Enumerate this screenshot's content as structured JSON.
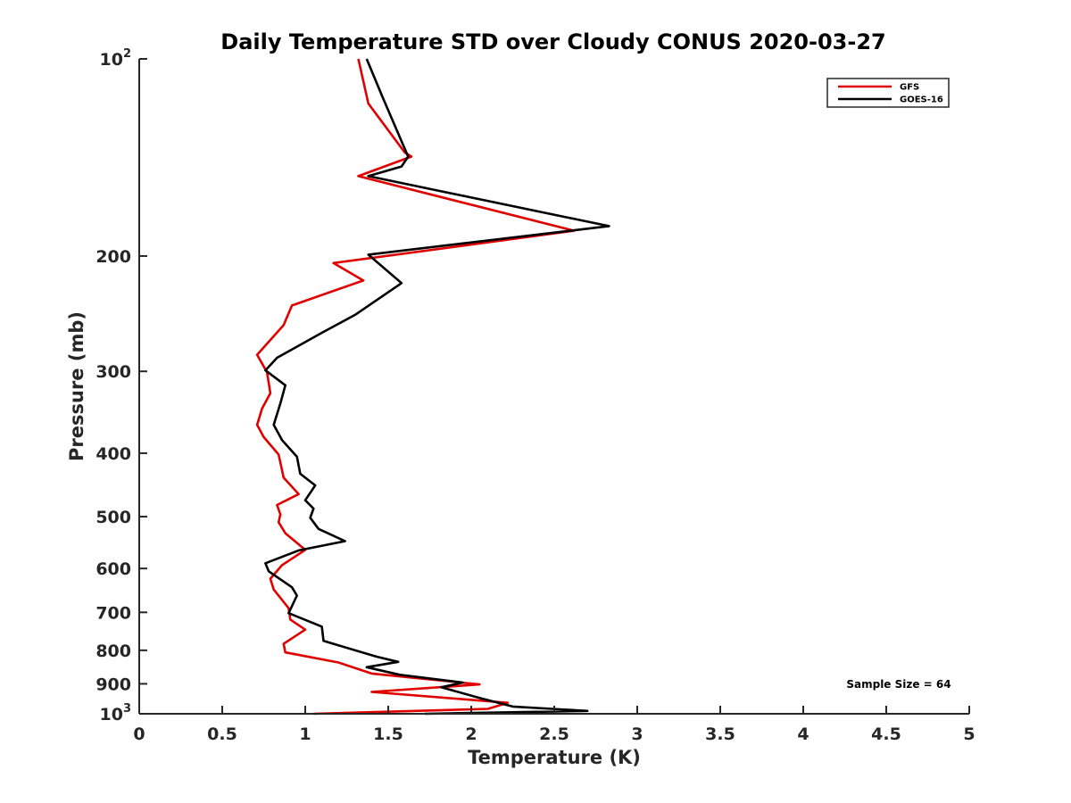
{
  "chart_data": {
    "type": "line",
    "title": "Daily Temperature STD over Cloudy CONUS 2020-03-27",
    "xlabel": "Temperature (K)",
    "ylabel": "Pressure (mb)",
    "xlim": [
      0,
      5
    ],
    "ylim": [
      100,
      1000
    ],
    "y_scale": "log",
    "y_reversed": true,
    "x_ticks": [
      {
        "value": 0,
        "label": "0"
      },
      {
        "value": 0.5,
        "label": "0.5"
      },
      {
        "value": 1,
        "label": "1"
      },
      {
        "value": 1.5,
        "label": "1.5"
      },
      {
        "value": 2,
        "label": "2"
      },
      {
        "value": 2.5,
        "label": "2.5"
      },
      {
        "value": 3,
        "label": "3"
      },
      {
        "value": 3.5,
        "label": "3.5"
      },
      {
        "value": 4,
        "label": "4"
      },
      {
        "value": 4.5,
        "label": "4.5"
      },
      {
        "value": 5,
        "label": "5"
      }
    ],
    "y_ticks": [
      {
        "value": 100,
        "label": "10",
        "sup": "2"
      },
      {
        "value": 200,
        "label": "200",
        "sup": ""
      },
      {
        "value": 300,
        "label": "300",
        "sup": ""
      },
      {
        "value": 400,
        "label": "400",
        "sup": ""
      },
      {
        "value": 500,
        "label": "500",
        "sup": ""
      },
      {
        "value": 600,
        "label": "600",
        "sup": ""
      },
      {
        "value": 700,
        "label": "700",
        "sup": ""
      },
      {
        "value": 800,
        "label": "800",
        "sup": ""
      },
      {
        "value": 900,
        "label": "900",
        "sup": ""
      },
      {
        "value": 1000,
        "label": "10",
        "sup": "3"
      }
    ],
    "grid": false,
    "legend_position": "top-right",
    "annotation": "Sample Size = 64",
    "series": [
      {
        "name": "GFS",
        "color": "#e00000",
        "points": [
          [
            1.32,
            100
          ],
          [
            1.38,
            117
          ],
          [
            1.6,
            139
          ],
          [
            1.64,
            141
          ],
          [
            1.32,
            151
          ],
          [
            2.62,
            183
          ],
          [
            1.17,
            205
          ],
          [
            1.35,
            218
          ],
          [
            0.92,
            238
          ],
          [
            0.87,
            255
          ],
          [
            0.71,
            283
          ],
          [
            0.77,
            301
          ],
          [
            0.79,
            324
          ],
          [
            0.74,
            342
          ],
          [
            0.71,
            362
          ],
          [
            0.75,
            378
          ],
          [
            0.84,
            402
          ],
          [
            0.87,
            436
          ],
          [
            0.96,
            462
          ],
          [
            0.83,
            480
          ],
          [
            0.85,
            496
          ],
          [
            0.84,
            510
          ],
          [
            0.88,
            530
          ],
          [
            1.0,
            562
          ],
          [
            0.86,
            593
          ],
          [
            0.79,
            622
          ],
          [
            0.81,
            646
          ],
          [
            0.9,
            690
          ],
          [
            0.91,
            718
          ],
          [
            1.0,
            744
          ],
          [
            0.87,
            782
          ],
          [
            0.88,
            806
          ],
          [
            1.2,
            835
          ],
          [
            1.4,
            868
          ],
          [
            2.05,
            902
          ],
          [
            1.4,
            926
          ],
          [
            2.22,
            962
          ],
          [
            2.1,
            983
          ],
          [
            1.05,
            1000
          ]
        ]
      },
      {
        "name": "GOES-16",
        "color": "#000000",
        "points": [
          [
            1.37,
            100
          ],
          [
            1.47,
            115
          ],
          [
            1.62,
            141
          ],
          [
            1.58,
            146
          ],
          [
            1.38,
            151
          ],
          [
            2.83,
            180
          ],
          [
            1.38,
            199
          ],
          [
            1.58,
            220
          ],
          [
            1.3,
            246
          ],
          [
            1.1,
            262
          ],
          [
            0.83,
            286
          ],
          [
            0.76,
            299
          ],
          [
            0.88,
            315
          ],
          [
            0.85,
            336
          ],
          [
            0.81,
            362
          ],
          [
            0.86,
            382
          ],
          [
            0.95,
            405
          ],
          [
            0.97,
            430
          ],
          [
            1.06,
            448
          ],
          [
            1.0,
            472
          ],
          [
            1.05,
            486
          ],
          [
            1.03,
            502
          ],
          [
            1.08,
            522
          ],
          [
            1.24,
            545
          ],
          [
            0.96,
            563
          ],
          [
            0.76,
            589
          ],
          [
            0.78,
            606
          ],
          [
            0.92,
            641
          ],
          [
            0.95,
            660
          ],
          [
            0.9,
            702
          ],
          [
            1.1,
            736
          ],
          [
            1.11,
            774
          ],
          [
            1.43,
            818
          ],
          [
            1.56,
            833
          ],
          [
            1.37,
            849
          ],
          [
            1.57,
            872
          ],
          [
            1.95,
            896
          ],
          [
            1.82,
            911
          ],
          [
            2.05,
            946
          ],
          [
            2.25,
            975
          ],
          [
            2.7,
            990
          ],
          [
            1.72,
            1000
          ]
        ]
      }
    ]
  }
}
